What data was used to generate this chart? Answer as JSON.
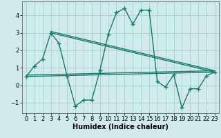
{
  "background_color": "#ceeaea",
  "grid_color": "#aacece",
  "line_color": "#1a7a6a",
  "line_width": 1.0,
  "marker": "+",
  "marker_size": 4,
  "marker_lw": 1.0,
  "xlabel": "Humidex (Indice chaleur)",
  "xlabel_fontsize": 7,
  "tick_fontsize": 6,
  "xlim": [
    -0.5,
    23.5
  ],
  "ylim": [
    -1.6,
    4.8
  ],
  "yticks": [
    -1,
    0,
    1,
    2,
    3,
    4
  ],
  "xticks": [
    0,
    1,
    2,
    3,
    4,
    5,
    6,
    7,
    8,
    9,
    10,
    11,
    12,
    13,
    14,
    15,
    16,
    17,
    18,
    19,
    20,
    21,
    22,
    23
  ],
  "main_x": [
    0,
    1,
    2,
    3,
    4,
    5,
    6,
    7,
    8,
    9,
    10,
    11,
    12,
    13,
    14,
    15,
    16,
    17,
    18,
    19,
    20,
    21,
    22,
    23
  ],
  "main_y": [
    0.5,
    1.1,
    1.5,
    3.0,
    2.4,
    0.5,
    -1.2,
    -0.85,
    -0.85,
    0.85,
    2.9,
    4.15,
    4.4,
    3.5,
    4.3,
    4.3,
    0.2,
    -0.1,
    0.6,
    -1.3,
    -0.2,
    -0.2,
    0.55,
    0.75
  ],
  "straight_lines": [
    {
      "x": [
        0,
        23
      ],
      "y": [
        0.5,
        0.75
      ]
    },
    {
      "x": [
        0,
        23
      ],
      "y": [
        0.5,
        0.75
      ]
    },
    {
      "x": [
        3,
        23
      ],
      "y": [
        3.0,
        0.75
      ]
    },
    {
      "x": [
        3,
        23
      ],
      "y": [
        3.0,
        0.75
      ]
    }
  ]
}
